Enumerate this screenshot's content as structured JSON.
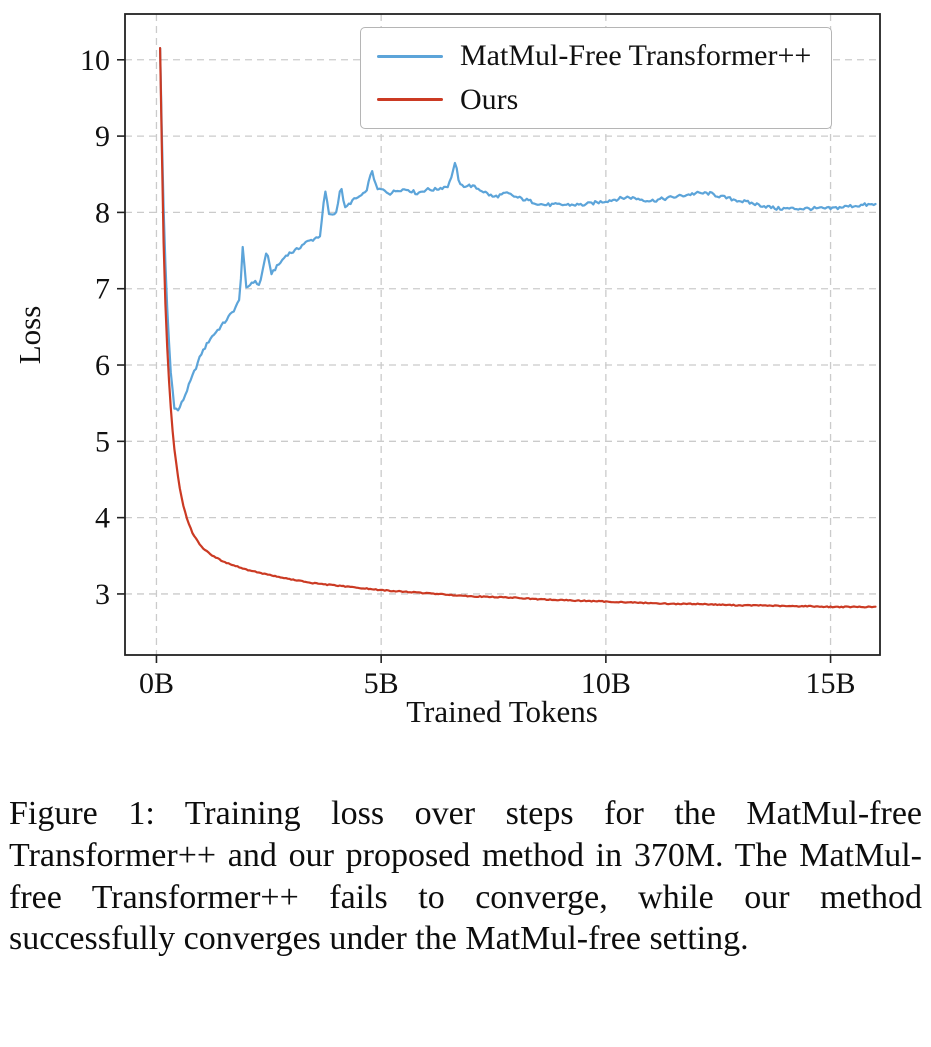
{
  "figure": {
    "caption": "Figure 1: Training loss over steps for the MatMul-free Transformer++ and our proposed method in 370M. The MatMul-free Transformer++ fails to converge, while our method successfully converges under the MatMul-free setting."
  },
  "chart_data": {
    "type": "line",
    "title": "",
    "xlabel": "Trained Tokens",
    "ylabel": "Loss",
    "xlim": [
      -0.7,
      16.1
    ],
    "ylim": [
      2.2,
      10.6
    ],
    "grid": true,
    "grid_style": "dashed",
    "legend_position": "upper right",
    "colors": {
      "grid": "#cbcbcb",
      "axis": "#222222",
      "background": "#ffffff"
    },
    "x_ticks": {
      "values": [
        0,
        5,
        10,
        15
      ],
      "labels": [
        "0B",
        "5B",
        "10B",
        "15B"
      ]
    },
    "y_ticks": {
      "values": [
        3,
        4,
        5,
        6,
        7,
        8,
        9,
        10
      ],
      "labels": [
        "3",
        "4",
        "5",
        "6",
        "7",
        "8",
        "9",
        "10"
      ]
    },
    "series": [
      {
        "name": "MatMul-Free Transformer++",
        "color": "#5ca4d9",
        "noise": 0.045,
        "step": 0.04,
        "points": [
          [
            0.08,
            10.15
          ],
          [
            0.12,
            9.0
          ],
          [
            0.18,
            7.6
          ],
          [
            0.25,
            6.6
          ],
          [
            0.32,
            5.9
          ],
          [
            0.4,
            5.45
          ],
          [
            0.48,
            5.4
          ],
          [
            0.6,
            5.55
          ],
          [
            0.8,
            5.85
          ],
          [
            1.0,
            6.15
          ],
          [
            1.2,
            6.35
          ],
          [
            1.5,
            6.55
          ],
          [
            1.7,
            6.7
          ],
          [
            1.85,
            6.85
          ],
          [
            1.92,
            7.55
          ],
          [
            2.0,
            7.0
          ],
          [
            2.15,
            7.1
          ],
          [
            2.3,
            7.05
          ],
          [
            2.45,
            7.5
          ],
          [
            2.55,
            7.2
          ],
          [
            2.7,
            7.3
          ],
          [
            2.9,
            7.45
          ],
          [
            3.1,
            7.5
          ],
          [
            3.3,
            7.6
          ],
          [
            3.5,
            7.65
          ],
          [
            3.65,
            7.7
          ],
          [
            3.75,
            8.3
          ],
          [
            3.85,
            7.95
          ],
          [
            4.0,
            8.0
          ],
          [
            4.1,
            8.35
          ],
          [
            4.2,
            8.05
          ],
          [
            4.35,
            8.15
          ],
          [
            4.5,
            8.2
          ],
          [
            4.65,
            8.25
          ],
          [
            4.8,
            8.55
          ],
          [
            4.9,
            8.3
          ],
          [
            5.0,
            8.3
          ],
          [
            5.2,
            8.25
          ],
          [
            5.4,
            8.3
          ],
          [
            5.6,
            8.3
          ],
          [
            5.8,
            8.25
          ],
          [
            6.0,
            8.3
          ],
          [
            6.2,
            8.3
          ],
          [
            6.5,
            8.35
          ],
          [
            6.65,
            8.65
          ],
          [
            6.75,
            8.35
          ],
          [
            7.0,
            8.35
          ],
          [
            7.2,
            8.3
          ],
          [
            7.5,
            8.2
          ],
          [
            7.8,
            8.25
          ],
          [
            8.0,
            8.2
          ],
          [
            8.3,
            8.15
          ],
          [
            8.6,
            8.1
          ],
          [
            9.0,
            8.1
          ],
          [
            9.5,
            8.1
          ],
          [
            10.0,
            8.15
          ],
          [
            10.5,
            8.2
          ],
          [
            11.0,
            8.15
          ],
          [
            11.5,
            8.2
          ],
          [
            12.0,
            8.25
          ],
          [
            12.3,
            8.25
          ],
          [
            12.6,
            8.2
          ],
          [
            13.0,
            8.15
          ],
          [
            13.4,
            8.1
          ],
          [
            13.8,
            8.05
          ],
          [
            14.2,
            8.05
          ],
          [
            14.6,
            8.05
          ],
          [
            15.0,
            8.05
          ],
          [
            15.4,
            8.08
          ],
          [
            15.8,
            8.1
          ],
          [
            16.0,
            8.1
          ]
        ]
      },
      {
        "name": "Ours",
        "color": "#cb3a23",
        "noise": 0.012,
        "step": 0.04,
        "points": [
          [
            0.08,
            10.15
          ],
          [
            0.12,
            8.8
          ],
          [
            0.16,
            7.6
          ],
          [
            0.2,
            6.8
          ],
          [
            0.25,
            6.1
          ],
          [
            0.3,
            5.6
          ],
          [
            0.35,
            5.2
          ],
          [
            0.4,
            4.9
          ],
          [
            0.5,
            4.45
          ],
          [
            0.6,
            4.15
          ],
          [
            0.7,
            3.95
          ],
          [
            0.8,
            3.8
          ],
          [
            1.0,
            3.62
          ],
          [
            1.2,
            3.52
          ],
          [
            1.5,
            3.42
          ],
          [
            2.0,
            3.32
          ],
          [
            2.5,
            3.25
          ],
          [
            3.0,
            3.19
          ],
          [
            3.5,
            3.14
          ],
          [
            4.0,
            3.11
          ],
          [
            4.5,
            3.08
          ],
          [
            5.0,
            3.05
          ],
          [
            5.5,
            3.03
          ],
          [
            6.0,
            3.01
          ],
          [
            6.5,
            2.99
          ],
          [
            7.0,
            2.97
          ],
          [
            7.5,
            2.96
          ],
          [
            8.0,
            2.95
          ],
          [
            8.5,
            2.93
          ],
          [
            9.0,
            2.92
          ],
          [
            9.5,
            2.91
          ],
          [
            10.0,
            2.9
          ],
          [
            10.5,
            2.89
          ],
          [
            11.0,
            2.88
          ],
          [
            11.5,
            2.87
          ],
          [
            12.0,
            2.87
          ],
          [
            12.5,
            2.86
          ],
          [
            13.0,
            2.85
          ],
          [
            13.5,
            2.85
          ],
          [
            14.0,
            2.84
          ],
          [
            14.5,
            2.84
          ],
          [
            15.0,
            2.83
          ],
          [
            15.5,
            2.83
          ],
          [
            16.0,
            2.83
          ]
        ]
      }
    ]
  }
}
